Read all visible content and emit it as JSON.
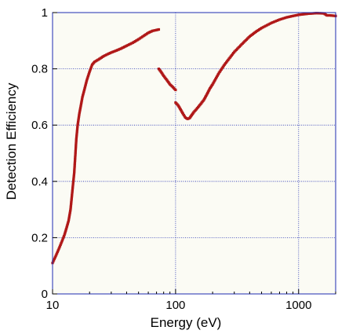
{
  "chart_data": {
    "type": "scatter",
    "title": "",
    "xlabel": "Energy (eV)",
    "ylabel": "Detection Efficiency",
    "xscale": "log",
    "xlim": [
      10,
      2000
    ],
    "ylim": [
      0,
      1
    ],
    "grid": true,
    "legend": "none",
    "x_ticks": [
      10,
      100,
      1000
    ],
    "x_tick_labels": [
      "10",
      "100",
      "1000"
    ],
    "y_ticks": [
      0,
      0.2,
      0.4,
      0.6,
      0.8,
      1
    ],
    "y_tick_labels": [
      "0",
      "0.2",
      "0.4",
      "0.6",
      "0.8",
      "1"
    ],
    "colors": {
      "series": "#b01818",
      "grid": "#1c2bb0",
      "frame": "#1c2bb0",
      "plot_background": "#fbfbf4"
    },
    "series": [
      {
        "points": [
          [
            10,
            0.11
          ],
          [
            10.5,
            0.13
          ],
          [
            11,
            0.15
          ],
          [
            11.5,
            0.17
          ],
          [
            12,
            0.19
          ],
          [
            12.5,
            0.21
          ],
          [
            13,
            0.235
          ],
          [
            13.5,
            0.26
          ],
          [
            14,
            0.3
          ],
          [
            14.3,
            0.34
          ],
          [
            14.6,
            0.38
          ],
          [
            15,
            0.43
          ],
          [
            15.3,
            0.49
          ],
          [
            15.6,
            0.55
          ],
          [
            16,
            0.6
          ],
          [
            16.5,
            0.64
          ],
          [
            17,
            0.67
          ],
          [
            17.5,
            0.7
          ],
          [
            18,
            0.72
          ],
          [
            19,
            0.76
          ],
          [
            20,
            0.79
          ],
          [
            21,
            0.815
          ],
          [
            22,
            0.825
          ],
          [
            24,
            0.835
          ],
          [
            26,
            0.845
          ],
          [
            28,
            0.852
          ],
          [
            30,
            0.858
          ],
          [
            33,
            0.865
          ],
          [
            36,
            0.872
          ],
          [
            40,
            0.882
          ],
          [
            45,
            0.893
          ],
          [
            50,
            0.905
          ],
          [
            55,
            0.917
          ],
          [
            60,
            0.928
          ],
          [
            65,
            0.935
          ],
          [
            70,
            0.938
          ],
          [
            73,
            0.94
          ]
        ]
      },
      {
        "points": [
          [
            73,
            0.8
          ],
          [
            76,
            0.79
          ],
          [
            80,
            0.775
          ],
          [
            85,
            0.76
          ],
          [
            90,
            0.745
          ],
          [
            95,
            0.735
          ],
          [
            100,
            0.725
          ]
        ]
      },
      {
        "points": [
          [
            100,
            0.68
          ],
          [
            105,
            0.67
          ],
          [
            110,
            0.655
          ],
          [
            115,
            0.64
          ],
          [
            120,
            0.627
          ],
          [
            125,
            0.622
          ],
          [
            130,
            0.625
          ],
          [
            135,
            0.635
          ],
          [
            140,
            0.645
          ],
          [
            150,
            0.66
          ],
          [
            160,
            0.675
          ],
          [
            170,
            0.69
          ],
          [
            180,
            0.71
          ],
          [
            190,
            0.73
          ],
          [
            200,
            0.745
          ],
          [
            225,
            0.785
          ],
          [
            250,
            0.815
          ],
          [
            300,
            0.86
          ],
          [
            350,
            0.89
          ],
          [
            400,
            0.915
          ],
          [
            450,
            0.932
          ],
          [
            500,
            0.945
          ],
          [
            600,
            0.963
          ],
          [
            700,
            0.975
          ],
          [
            800,
            0.983
          ],
          [
            900,
            0.988
          ],
          [
            1000,
            0.992
          ],
          [
            1200,
            0.996
          ],
          [
            1400,
            0.998
          ],
          [
            1600,
            0.997
          ],
          [
            1700,
            0.99
          ],
          [
            1800,
            0.99
          ],
          [
            2000,
            0.988
          ]
        ]
      }
    ]
  }
}
